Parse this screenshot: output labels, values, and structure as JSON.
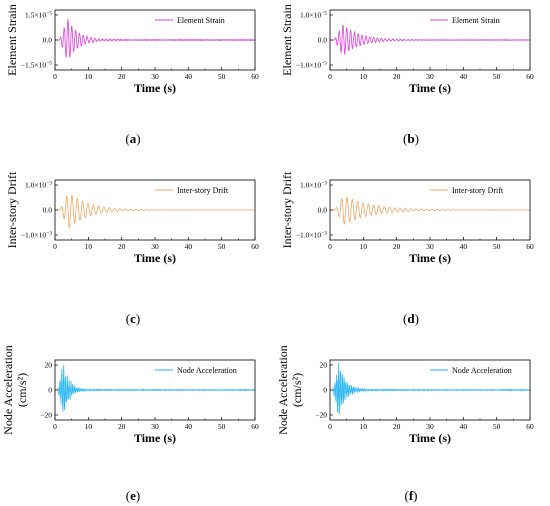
{
  "panels": [
    {
      "id": "a",
      "caption": "(a)",
      "ylabel": "Element Strain",
      "xlabel": "Time (s)",
      "legend": "Element Strain",
      "color": "#e040e0",
      "xlim": [
        0,
        60
      ],
      "xticks": [
        "0",
        "10",
        "20",
        "30",
        "40",
        "50",
        "60"
      ],
      "yticks": [
        {
          "value": 1.5e-05,
          "mant": "1.5×10",
          "exp": "−5"
        },
        {
          "value": 0,
          "mant": "0.0",
          "exp": ""
        },
        {
          "value": -1.5e-05,
          "mant": "−1.5×10",
          "exp": "−5"
        }
      ],
      "ylim": [
        -1.8e-05,
        1.8e-05
      ],
      "signal": {
        "onset": 1.3,
        "peak": 1.35e-05,
        "peak_time": 3.6,
        "decay": 0.32,
        "period": 1.15,
        "noise": 0.05
      }
    },
    {
      "id": "b",
      "caption": "(b)",
      "ylabel": "Element Strain",
      "xlabel": "Time (s)",
      "legend": "Element Strain",
      "color": "#e040e0",
      "xlim": [
        0,
        60
      ],
      "xticks": [
        "0",
        "10",
        "20",
        "30",
        "40",
        "50",
        "60"
      ],
      "yticks": [
        {
          "value": 1e-05,
          "mant": "1.0×10",
          "exp": "−5"
        },
        {
          "value": 0,
          "mant": "0.0",
          "exp": ""
        },
        {
          "value": -1e-05,
          "mant": "−1.0×10",
          "exp": "−5"
        }
      ],
      "ylim": [
        -1.2e-05,
        1.2e-05
      ],
      "signal": {
        "onset": 1.3,
        "peak": 6.5e-06,
        "peak_time": 3.6,
        "decay": 0.2,
        "period": 1.15,
        "noise": 0.05
      }
    },
    {
      "id": "c",
      "caption": "(c)",
      "ylabel": "Inter-story Drift",
      "xlabel": "Time (s)",
      "legend": "Inter-story Drift",
      "color": "#f4a460",
      "xlim": [
        0,
        60
      ],
      "xticks": [
        "0",
        "10",
        "20",
        "30",
        "40",
        "50",
        "60"
      ],
      "yticks": [
        {
          "value": 0.001,
          "mant": "1.0×10",
          "exp": "−3"
        },
        {
          "value": 0,
          "mant": "0.0",
          "exp": ""
        },
        {
          "value": -0.001,
          "mant": "−1.0×10",
          "exp": "−3"
        }
      ],
      "ylim": [
        -0.0012,
        0.0012
      ],
      "signal": {
        "onset": 1.5,
        "peak": 0.00075,
        "peak_time": 3.8,
        "decay": 0.17,
        "period": 1.6,
        "noise": 0.0
      }
    },
    {
      "id": "d",
      "caption": "(d)",
      "ylabel": "Inter-story Drift",
      "xlabel": "Time (s)",
      "legend": "Inter-story Drift",
      "color": "#f4a460",
      "xlim": [
        0,
        60
      ],
      "xticks": [
        "0",
        "10",
        "20",
        "30",
        "40",
        "50",
        "60"
      ],
      "yticks": [
        {
          "value": 0.001,
          "mant": "1.0×10",
          "exp": "−3"
        },
        {
          "value": 0,
          "mant": "0.0",
          "exp": ""
        },
        {
          "value": -0.001,
          "mant": "−1.0×10",
          "exp": "−3"
        }
      ],
      "ylim": [
        -0.0012,
        0.0012
      ],
      "signal": {
        "onset": 1.5,
        "peak": 0.0006,
        "peak_time": 3.8,
        "decay": 0.12,
        "period": 1.6,
        "noise": 0.0
      }
    },
    {
      "id": "e",
      "caption": "(e)",
      "ylabel": "Node Acceleration",
      "ylabel2": "(cm/s²)",
      "xlabel": "Time (s)",
      "legend": "Node Acceleration",
      "color": "#29b6f6",
      "xlim": [
        0,
        60
      ],
      "xticks": [
        "0",
        "10",
        "20",
        "30",
        "40",
        "50",
        "60"
      ],
      "yticks": [
        {
          "value": 20,
          "mant": "20",
          "exp": ""
        },
        {
          "value": 0,
          "mant": "0",
          "exp": ""
        },
        {
          "value": -20,
          "mant": "−20",
          "exp": ""
        }
      ],
      "ylim": [
        -24,
        24
      ],
      "signal": {
        "onset": 0.8,
        "peak": 18,
        "peak_time": 2.4,
        "decay": 0.55,
        "period": 0.55,
        "noise": 0.45
      }
    },
    {
      "id": "f",
      "caption": "(f)",
      "ylabel": "Node Acceleration",
      "ylabel2": "(cm/s²)",
      "xlabel": "Time (s)",
      "legend": "Node Acceleration",
      "color": "#29b6f6",
      "xlim": [
        0,
        60
      ],
      "xticks": [
        "0",
        "10",
        "20",
        "30",
        "40",
        "50",
        "60"
      ],
      "yticks": [
        {
          "value": 20,
          "mant": "20",
          "exp": ""
        },
        {
          "value": 0,
          "mant": "0",
          "exp": ""
        },
        {
          "value": -20,
          "mant": "−20",
          "exp": ""
        }
      ],
      "ylim": [
        -24,
        24
      ],
      "signal": {
        "onset": 0.8,
        "peak": 18,
        "peak_time": 2.4,
        "decay": 0.45,
        "period": 0.55,
        "noise": 0.45
      }
    }
  ],
  "chart_data": [
    {
      "type": "line",
      "panel": "(a)",
      "xlabel": "Time (s)",
      "ylabel": "Element Strain",
      "series": [
        {
          "name": "Element Strain"
        }
      ],
      "xlim": [
        0,
        60
      ],
      "ylim": [
        -1.8e-05,
        1.8e-05
      ],
      "yticks": [
        -1.5e-05,
        0,
        1.5e-05
      ],
      "xticks": [
        0,
        10,
        20,
        30,
        40,
        50,
        60
      ],
      "legend": "top-right",
      "grid": false
    },
    {
      "type": "line",
      "panel": "(b)",
      "xlabel": "Time (s)",
      "ylabel": "Element Strain",
      "series": [
        {
          "name": "Element Strain"
        }
      ],
      "xlim": [
        0,
        60
      ],
      "ylim": [
        -1.2e-05,
        1.2e-05
      ],
      "yticks": [
        -1e-05,
        0,
        1e-05
      ],
      "xticks": [
        0,
        10,
        20,
        30,
        40,
        50,
        60
      ],
      "legend": "top-right",
      "grid": false
    },
    {
      "type": "line",
      "panel": "(c)",
      "xlabel": "Time (s)",
      "ylabel": "Inter-story Drift",
      "series": [
        {
          "name": "Inter-story Drift"
        }
      ],
      "xlim": [
        0,
        60
      ],
      "ylim": [
        -0.0012,
        0.0012
      ],
      "yticks": [
        -0.001,
        0,
        0.001
      ],
      "xticks": [
        0,
        10,
        20,
        30,
        40,
        50,
        60
      ],
      "legend": "top-right",
      "grid": false
    },
    {
      "type": "line",
      "panel": "(d)",
      "xlabel": "Time (s)",
      "ylabel": "Inter-story Drift",
      "series": [
        {
          "name": "Inter-story Drift"
        }
      ],
      "xlim": [
        0,
        60
      ],
      "ylim": [
        -0.0012,
        0.0012
      ],
      "yticks": [
        -0.001,
        0,
        0.001
      ],
      "xticks": [
        0,
        10,
        20,
        30,
        40,
        50,
        60
      ],
      "legend": "top-right",
      "grid": false
    },
    {
      "type": "line",
      "panel": "(e)",
      "xlabel": "Time (s)",
      "ylabel": "Node Acceleration (cm/s²)",
      "series": [
        {
          "name": "Node Acceleration"
        }
      ],
      "xlim": [
        0,
        60
      ],
      "ylim": [
        -24,
        24
      ],
      "yticks": [
        -20,
        0,
        20
      ],
      "xticks": [
        0,
        10,
        20,
        30,
        40,
        50,
        60
      ],
      "legend": "top-right",
      "grid": false
    },
    {
      "type": "line",
      "panel": "(f)",
      "xlabel": "Time (s)",
      "ylabel": "Node Acceleration (cm/s²)",
      "series": [
        {
          "name": "Node Acceleration"
        }
      ],
      "xlim": [
        0,
        60
      ],
      "ylim": [
        -24,
        24
      ],
      "yticks": [
        -20,
        0,
        20
      ],
      "xticks": [
        0,
        10,
        20,
        30,
        40,
        50,
        60
      ],
      "legend": "top-right",
      "grid": false
    }
  ]
}
